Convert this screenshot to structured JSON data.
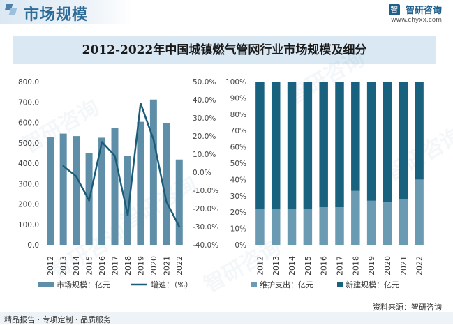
{
  "header": {
    "title": "市场规模"
  },
  "logo": {
    "icon": "智",
    "name": "智研咨询",
    "url": "www.chyxx.com"
  },
  "chart_title": "2012-2022年中国城镇燃气管网行业市场规模及细分",
  "footer": {
    "source": "资料来源：智研咨询",
    "services": "精品报告 · 专项定制 · 品质服务"
  },
  "watermark_text": "智研咨询",
  "colors": {
    "bar": "#5f8fa8",
    "line": "#1c5c78",
    "maintenance": "#6b9ab3",
    "newbuild": "#18617f",
    "title_bg": "#d9e8f3"
  },
  "chart_data": [
    {
      "type": "bar+line",
      "categories": [
        "2012",
        "2013",
        "2014",
        "2015",
        "2016",
        "2017",
        "2018",
        "2019",
        "2020",
        "2021",
        "2022"
      ],
      "bar_series": {
        "name": "市场规模：亿元",
        "values": [
          527,
          545,
          533,
          450,
          525,
          573,
          437,
          603,
          712,
          597,
          418
        ]
      },
      "line_series": {
        "name": "增速：（%）",
        "values": [
          null,
          3.4,
          -2.2,
          -15.6,
          16.7,
          9.1,
          -23.7,
          38.0,
          18.1,
          -16.2,
          -30.0
        ]
      },
      "left_axis": {
        "min": 0,
        "max": 800,
        "ticks": [
          "0.0",
          "100.0",
          "200.0",
          "300.0",
          "400.0",
          "500.0",
          "600.0",
          "700.0",
          "800.0"
        ]
      },
      "right_axis": {
        "min": -40,
        "max": 50,
        "ticks": [
          "-40.0%",
          "-30.0%",
          "-20.0%",
          "-10.0%",
          "0.0%",
          "10.0%",
          "20.0%",
          "30.0%",
          "40.0%",
          "50.0%"
        ]
      },
      "legend": [
        "市场规模：亿元",
        "增速：（%）"
      ]
    },
    {
      "type": "stacked_bar_100",
      "categories": [
        "2012",
        "2013",
        "2014",
        "2015",
        "2016",
        "2017",
        "2018",
        "2019",
        "2020",
        "2021",
        "2022"
      ],
      "series": [
        {
          "name": "维护支出：亿元",
          "values": [
            22,
            22,
            22,
            22,
            23,
            23,
            33,
            27,
            26,
            28,
            40
          ]
        },
        {
          "name": "新建规模：亿元",
          "values": [
            78,
            78,
            78,
            78,
            77,
            77,
            67,
            73,
            74,
            72,
            60
          ]
        }
      ],
      "y_axis": {
        "min": 0,
        "max": 100,
        "ticks": [
          "0%",
          "10%",
          "20%",
          "30%",
          "40%",
          "50%",
          "60%",
          "70%",
          "80%",
          "90%",
          "100%"
        ]
      },
      "legend": [
        "维护支出：亿元",
        "新建规模：亿元"
      ]
    }
  ]
}
